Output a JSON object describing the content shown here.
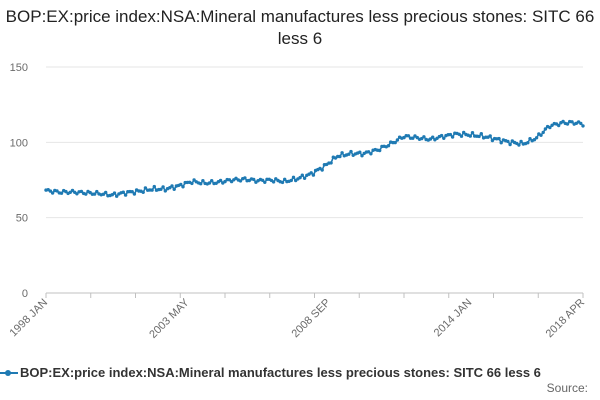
{
  "chart_data": {
    "type": "line",
    "title": "BOP:EX:price index:NSA:Mineral manufactures less precious stones: SITC 66 less 6",
    "xlabel": "",
    "ylabel": "",
    "ylim": [
      0,
      150
    ],
    "yticks": [
      0,
      50,
      100,
      150
    ],
    "grid": true,
    "xrange": [
      "1998 JAN",
      "2018 APR"
    ],
    "xticks": [
      {
        "label": "1998 JAN",
        "index": 0
      },
      {
        "label": "2003 MAY",
        "index": 64
      },
      {
        "label": "2008 SEP",
        "index": 128
      },
      {
        "label": "2014 JAN",
        "index": 192
      },
      {
        "label": "2018 APR",
        "index": 243
      }
    ],
    "legend_position": "bottom",
    "series": [
      {
        "name": "BOP:EX:price index:NSA:Mineral manufactures less precious stones: SITC 66 less 6",
        "color": "#1f7ab3",
        "anchors": [
          [
            0,
            68
          ],
          [
            6,
            67
          ],
          [
            12,
            67
          ],
          [
            18,
            66.5
          ],
          [
            24,
            66
          ],
          [
            30,
            65
          ],
          [
            36,
            66.5
          ],
          [
            42,
            67.5
          ],
          [
            48,
            69
          ],
          [
            54,
            69
          ],
          [
            60,
            71
          ],
          [
            66,
            74
          ],
          [
            72,
            73
          ],
          [
            78,
            73.5
          ],
          [
            84,
            75
          ],
          [
            90,
            75.5
          ],
          [
            96,
            74.5
          ],
          [
            102,
            75
          ],
          [
            108,
            74
          ],
          [
            114,
            76
          ],
          [
            120,
            79
          ],
          [
            126,
            84
          ],
          [
            132,
            91
          ],
          [
            138,
            92.5
          ],
          [
            144,
            92.5
          ],
          [
            150,
            95
          ],
          [
            156,
            99
          ],
          [
            162,
            104
          ],
          [
            168,
            103
          ],
          [
            174,
            102
          ],
          [
            180,
            104
          ],
          [
            186,
            105.5
          ],
          [
            192,
            105
          ],
          [
            198,
            104
          ],
          [
            204,
            102
          ],
          [
            210,
            100
          ],
          [
            216,
            99
          ],
          [
            222,
            103
          ],
          [
            228,
            111
          ],
          [
            234,
            113
          ],
          [
            240,
            113
          ],
          [
            243,
            112
          ]
        ]
      }
    ]
  },
  "source_label": "Source:"
}
